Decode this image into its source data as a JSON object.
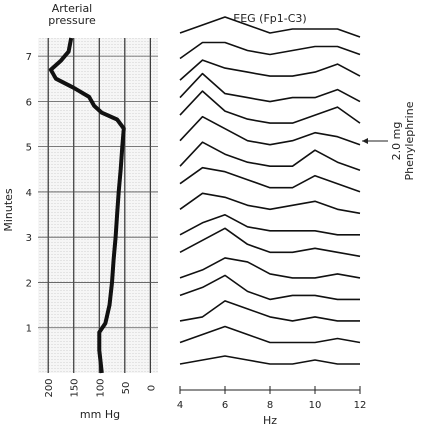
{
  "chart_data": [
    {
      "type": "line",
      "title": [
        "Arterial",
        "pressure"
      ],
      "x_label": "mm Hg",
      "y_label": "Minutes",
      "x": [
        0,
        0.5,
        0.9,
        1.1,
        1.5,
        2,
        2.5,
        3,
        3.5,
        4,
        4.5,
        5,
        5.4,
        5.6,
        5.75,
        5.9,
        6.1,
        6.3,
        6.5,
        6.7,
        6.9,
        7.1,
        7.4
      ],
      "values": [
        95,
        100,
        100,
        88,
        80,
        75,
        72,
        68,
        65,
        62,
        58,
        55,
        52,
        65,
        95,
        110,
        120,
        150,
        185,
        195,
        175,
        160,
        155
      ],
      "color": "#111",
      "ylim": [
        220,
        -15
      ],
      "yticks": [
        200,
        150,
        100,
        50,
        0
      ],
      "xlim": [
        0,
        7.4
      ],
      "xticks": [
        1,
        2,
        3,
        4,
        5,
        6,
        7
      ],
      "grid": true
    },
    {
      "type": "spectral-array",
      "title": "EEG (Fp1-C3)",
      "x_label": "Hz",
      "x": [
        4,
        5,
        6,
        7,
        8,
        9,
        10,
        11,
        12
      ],
      "xlim": [
        4,
        12
      ],
      "xticks": [
        4,
        6,
        8,
        10,
        12
      ],
      "color": "#111",
      "annotation": [
        "2.0 mg",
        "Phenylephrine"
      ],
      "series": [
        {
          "values": [
            1,
            2,
            3,
            2,
            1,
            1,
            2,
            1,
            1
          ]
        },
        {
          "values": [
            1,
            3,
            5,
            3,
            1,
            1,
            1,
            2,
            1
          ]
        },
        {
          "values": [
            1,
            2,
            6,
            4,
            2,
            1,
            2,
            1,
            1
          ]
        },
        {
          "values": [
            2,
            4,
            7,
            3,
            1,
            2,
            2,
            1,
            1
          ]
        },
        {
          "values": [
            1,
            3,
            6,
            5,
            2,
            1,
            1,
            2,
            1
          ]
        },
        {
          "values": [
            2,
            5,
            8,
            4,
            2,
            2,
            3,
            2,
            1
          ]
        },
        {
          "values": [
            1,
            4,
            6,
            3,
            2,
            2,
            2,
            1,
            1
          ]
        },
        {
          "values": [
            2,
            6,
            5,
            3,
            2,
            3,
            4,
            2,
            1
          ]
        },
        {
          "values": [
            3,
            7,
            6,
            4,
            2,
            2,
            5,
            3,
            1
          ]
        },
        {
          "values": [
            2,
            8,
            5,
            3,
            2,
            2,
            6,
            3,
            1
          ]
        },
        {
          "values": [
            3,
            9,
            6,
            3,
            2,
            3,
            5,
            4,
            2
          ]
        },
        {
          "values": [
            4,
            10,
            5,
            3,
            2,
            2,
            4,
            6,
            2
          ]
        },
        {
          "values": [
            3,
            9,
            4,
            3,
            2,
            3,
            3,
            5,
            2
          ]
        },
        {
          "values": [
            2,
            7,
            5,
            4,
            3,
            3,
            4,
            6,
            3
          ]
        },
        {
          "values": [
            2,
            6,
            6,
            4,
            3,
            4,
            5,
            5,
            3
          ]
        },
        {
          "values": [
            3,
            5,
            7,
            5,
            3,
            4,
            4,
            4,
            2
          ]
        }
      ]
    }
  ]
}
